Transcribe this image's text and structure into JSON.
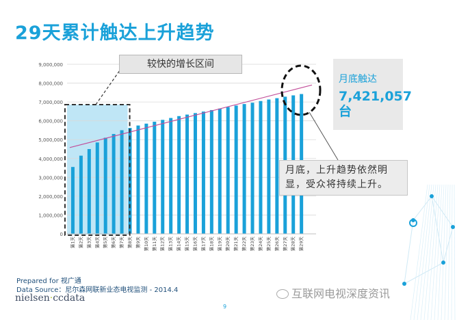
{
  "title": "29天累计触达上升趋势",
  "callout_top": "较快的增长区间",
  "callout_bottom": "月底，上升趋势依然明显，受众将持续上升。",
  "summary": {
    "label": "月底触达",
    "value": "7,421,057",
    "unit": "台"
  },
  "footer": {
    "prepared": "Prepared for 视广通",
    "source": "Data Source：尼尔森网联新业态电视监测 - 2014.4",
    "brand_left": "nielsen",
    "brand_dot": "·",
    "brand_right": "ccdata",
    "page": "9",
    "watermark": "互联网电视深度资讯"
  },
  "colors": {
    "accent": "#1aa1d9",
    "bar": "#1aa1d9",
    "trend": "#c24f9a",
    "highlight": "#bfe6f6"
  },
  "chart_data": {
    "type": "bar",
    "categories": [
      "第1天",
      "第2天",
      "第3天",
      "第4天",
      "第5天",
      "第6天",
      "第7天",
      "第8天",
      "第9天",
      "第10天",
      "第11天",
      "第12天",
      "第13天",
      "第14天",
      "第15天",
      "第16天",
      "第17天",
      "第18天",
      "第19天",
      "第20天",
      "第21天",
      "第22天",
      "第23天",
      "第24天",
      "第25天",
      "第26天",
      "第27天",
      "第28天",
      "第29天"
    ],
    "values": [
      3550000,
      4150000,
      4500000,
      4850000,
      5100000,
      5300000,
      5500000,
      5620000,
      5750000,
      5850000,
      5950000,
      6050000,
      6150000,
      6250000,
      6330000,
      6410000,
      6490000,
      6570000,
      6650000,
      6730000,
      6810000,
      6890000,
      6960000,
      7050000,
      7130000,
      7200000,
      7280000,
      7350000,
      7421057
    ],
    "ylim": [
      0,
      9000000
    ],
    "yticks": [
      0,
      1000000,
      2000000,
      3000000,
      4000000,
      5000000,
      6000000,
      7000000,
      8000000,
      9000000
    ],
    "ytick_labels": [
      "0",
      "1,000,000",
      "2,000,000",
      "3,000,000",
      "4,000,000",
      "5,000,000",
      "6,000,000",
      "7,000,000",
      "8,000,000",
      "9,000,000"
    ],
    "trendline": {
      "start": 4580000,
      "end": 7900000
    },
    "highlight_range": [
      1,
      7
    ],
    "title": "",
    "xlabel": "",
    "ylabel": "",
    "grid": true
  }
}
